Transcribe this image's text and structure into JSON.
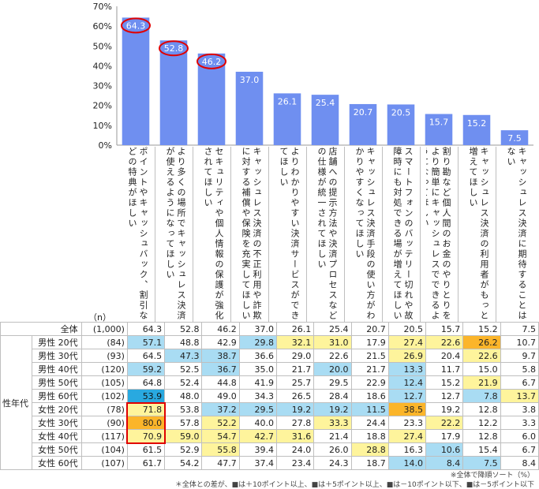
{
  "chart_data": {
    "type": "bar",
    "ylim": [
      0,
      70
    ],
    "yticks": [
      "0%",
      "10%",
      "20%",
      "30%",
      "40%",
      "50%",
      "60%",
      "70%"
    ],
    "bar_color": "#6f8ff0",
    "circled_indices": [
      0,
      1,
      2
    ],
    "categories": [
      "ポイントやキャッシュバック、割引などの特典がほしい",
      "より多くの場所でキャッシュレス決済が使えるようになってほしい",
      "セキュリティや個人情報の保護が強化されてほしい",
      "キャッシュレス決済の不正利用や詐欺に対する補償や保険を充実してほしい",
      "よりわかりやすい決済サービスができてほしい",
      "店舗への提示方法や決済プロセスなどの仕様が統一されてほしい",
      "キャッシュレス決済手段の使い方がわかりやすくなってほしい",
      "スマートフォンのバッテリー切れや故障時にも対処できる場が増えてほしい",
      "割り勘など個人間のお金のやりとりをより簡単にキャッシュレスでできるようになってほしい",
      "キャッシュレス決済の利用者がもっと増えてほしい",
      "キャッシュレス決済に期待することはない"
    ],
    "values": [
      64.3,
      52.8,
      46.2,
      37.0,
      26.1,
      25.4,
      20.7,
      20.5,
      15.7,
      15.2,
      7.5
    ]
  },
  "table": {
    "n_header": "（n）",
    "group_label": "性年代",
    "total_row": {
      "label": "全体",
      "n": "(1,000)",
      "values": [
        "64.3",
        "52.8",
        "46.2",
        "37.0",
        "26.1",
        "25.4",
        "20.7",
        "20.5",
        "15.7",
        "15.2",
        "7.5"
      ]
    },
    "rows": [
      {
        "label": "男性 20代",
        "n": "(84)",
        "values": [
          "57.1",
          "48.8",
          "42.9",
          "29.8",
          "32.1",
          "31.0",
          "17.9",
          "27.4",
          "22.6",
          "26.2",
          "10.7"
        ],
        "colors": [
          "lb",
          "",
          "",
          "lb",
          "y",
          "y",
          "",
          "y",
          "y",
          "o",
          ""
        ]
      },
      {
        "label": "男性 30代",
        "n": "(93)",
        "values": [
          "64.5",
          "47.3",
          "38.7",
          "36.6",
          "29.0",
          "22.6",
          "21.5",
          "26.9",
          "20.4",
          "22.6",
          "9.7"
        ],
        "colors": [
          "",
          "lb",
          "lb",
          "",
          "",
          "",
          "",
          "y",
          "",
          "y",
          ""
        ]
      },
      {
        "label": "男性 40代",
        "n": "(120)",
        "values": [
          "59.2",
          "52.5",
          "36.7",
          "35.0",
          "21.7",
          "20.0",
          "21.7",
          "13.3",
          "11.7",
          "15.0",
          "5.8"
        ],
        "colors": [
          "lb",
          "",
          "lb",
          "",
          "",
          "lb",
          "",
          "lb",
          "",
          "",
          ""
        ]
      },
      {
        "label": "男性 50代",
        "n": "(105)",
        "values": [
          "64.8",
          "52.4",
          "44.8",
          "41.9",
          "25.7",
          "29.5",
          "22.9",
          "12.4",
          "15.2",
          "21.9",
          "6.7"
        ],
        "colors": [
          "",
          "",
          "",
          "",
          "",
          "",
          "",
          "lb",
          "",
          "y",
          ""
        ]
      },
      {
        "label": "男性 60代",
        "n": "(102)",
        "values": [
          "53.9",
          "48.0",
          "49.0",
          "34.3",
          "26.5",
          "28.4",
          "18.6",
          "12.7",
          "12.7",
          "7.8",
          "13.7"
        ],
        "colors": [
          "db",
          "",
          "",
          "",
          "",
          "",
          "",
          "lb",
          "",
          "lb",
          "y"
        ]
      },
      {
        "label": "女性 20代",
        "n": "(78)",
        "values": [
          "71.8",
          "53.8",
          "37.2",
          "29.5",
          "19.2",
          "19.2",
          "11.5",
          "38.5",
          "19.2",
          "12.8",
          "3.8"
        ],
        "colors": [
          "y",
          "",
          "lb",
          "lb",
          "lb",
          "lb",
          "lb",
          "o",
          "",
          "",
          ""
        ]
      },
      {
        "label": "女性 30代",
        "n": "(90)",
        "values": [
          "80.0",
          "57.8",
          "52.2",
          "40.0",
          "27.8",
          "33.3",
          "24.4",
          "23.3",
          "22.2",
          "12.2",
          "3.3"
        ],
        "colors": [
          "o",
          "",
          "y",
          "",
          "",
          "y",
          "",
          "",
          "y",
          "",
          ""
        ]
      },
      {
        "label": "女性 40代",
        "n": "(117)",
        "values": [
          "70.9",
          "59.0",
          "54.7",
          "42.7",
          "31.6",
          "21.4",
          "18.8",
          "27.4",
          "17.9",
          "12.8",
          "6.0"
        ],
        "colors": [
          "y",
          "y",
          "y",
          "y",
          "y",
          "",
          "",
          "y",
          "",
          "",
          ""
        ]
      },
      {
        "label": "女性 50代",
        "n": "(104)",
        "values": [
          "61.5",
          "52.9",
          "55.8",
          "39.4",
          "24.0",
          "26.0",
          "28.8",
          "16.3",
          "10.6",
          "15.4",
          "6.7"
        ],
        "colors": [
          "",
          "",
          "y",
          "",
          "",
          "",
          "y",
          "",
          "lb",
          "",
          ""
        ]
      },
      {
        "label": "女性 60代",
        "n": "(107)",
        "values": [
          "61.7",
          "54.2",
          "47.7",
          "37.4",
          "23.4",
          "24.3",
          "18.7",
          "14.0",
          "8.4",
          "7.5",
          "8.4"
        ],
        "colors": [
          "",
          "",
          "",
          "",
          "",
          "",
          "",
          "lb",
          "lb",
          "lb",
          ""
        ]
      }
    ],
    "highlight_box_rows": [
      5,
      6,
      7
    ],
    "highlight_box_col": 0
  },
  "notes": {
    "sort_note": "※全体で降順ソート（%）",
    "legend_note": "＊全体との差が、■は＋10ポイント以上、■は＋5ポイント以上、■は－10ポイント以下、■は－5ポイント以下"
  }
}
